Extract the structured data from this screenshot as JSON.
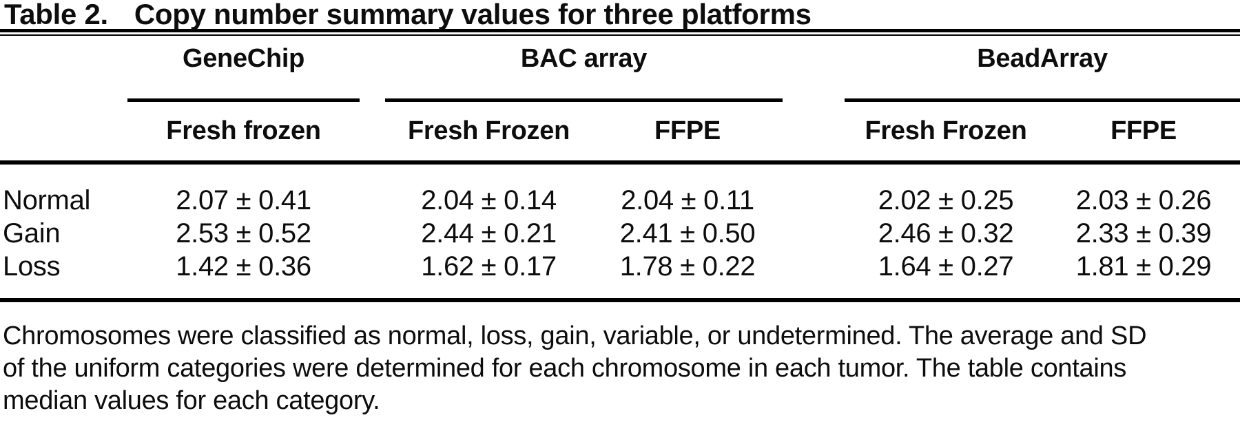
{
  "title": {
    "label": "Table 2.",
    "caption": "Copy number summary values for three platforms"
  },
  "header": {
    "groups": [
      {
        "name": "GeneChip",
        "span": 1
      },
      {
        "name": "BAC array",
        "span": 2
      },
      {
        "name": "BeadArray",
        "span": 2
      }
    ],
    "columns": [
      "Fresh frozen",
      "Fresh Frozen",
      "FFPE",
      "Fresh Frozen",
      "FFPE"
    ]
  },
  "rows": [
    {
      "label": "Normal",
      "cells": [
        "2.07 ± 0.41",
        "2.04 ± 0.14",
        "2.04 ± 0.11",
        "2.02 ± 0.25",
        "2.03 ± 0.26"
      ]
    },
    {
      "label": "Gain",
      "cells": [
        "2.53 ± 0.52",
        "2.44 ± 0.21",
        "2.41 ± 0.50",
        "2.46 ± 0.32",
        "2.33 ± 0.39"
      ]
    },
    {
      "label": "Loss",
      "cells": [
        "1.42 ± 0.36",
        "1.62 ± 0.17",
        "1.78 ± 0.22",
        "1.64 ± 0.27",
        "1.81 ± 0.29"
      ]
    }
  ],
  "footnote": {
    "lines": [
      "Chromosomes were classified as normal, loss, gain, variable, or undetermined. The average and SD",
      "of the uniform categories were determined for each chromosome in each tumor. The table contains",
      "median values for each category."
    ]
  },
  "chart_data": {
    "type": "table",
    "title": "Table 2. Copy number summary values for three platforms",
    "row_labels": [
      "Normal",
      "Gain",
      "Loss"
    ],
    "columns": [
      "GeneChip Fresh frozen",
      "BAC array Fresh Frozen",
      "BAC array FFPE",
      "BeadArray Fresh Frozen",
      "BeadArray FFPE"
    ],
    "means": [
      [
        2.07,
        2.04,
        2.04,
        2.02,
        2.03
      ],
      [
        2.53,
        2.44,
        2.41,
        2.46,
        2.33
      ],
      [
        1.42,
        1.62,
        1.78,
        1.64,
        1.81
      ]
    ],
    "sds": [
      [
        0.41,
        0.14,
        0.11,
        0.25,
        0.26
      ],
      [
        0.52,
        0.21,
        0.5,
        0.32,
        0.39
      ],
      [
        0.36,
        0.17,
        0.22,
        0.27,
        0.29
      ]
    ]
  },
  "colors": {
    "text": "#0d0d0d",
    "rule": "#000000",
    "background": "#ffffff"
  }
}
